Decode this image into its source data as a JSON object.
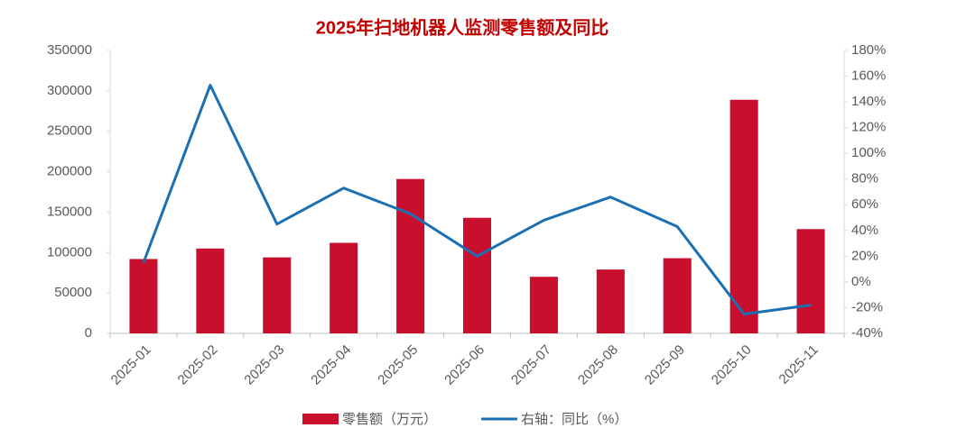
{
  "chart_data": {
    "type": "bar",
    "title": "2025年扫地机器人监测零售额及同比",
    "categories": [
      "2025-01",
      "2025-02",
      "2025-03",
      "2025-04",
      "2025-05",
      "2025-06",
      "2025-07",
      "2025-08",
      "2025-09",
      "2025-10",
      "2025-11"
    ],
    "series": [
      {
        "name": "零售额（万元）",
        "type": "bar",
        "color": "#c8102e",
        "values": [
          92000,
          105000,
          94000,
          112000,
          191000,
          143000,
          70000,
          79000,
          93000,
          289000,
          129000
        ]
      },
      {
        "name": "右轴：同比（%）",
        "type": "line",
        "axis": "y2",
        "color": "#1b6fb3",
        "values": [
          15,
          153,
          45,
          73,
          53,
          20,
          48,
          66,
          43,
          -25,
          -18
        ]
      }
    ],
    "ylim": [
      0,
      350000
    ],
    "yticks": [
      0,
      50000,
      100000,
      150000,
      200000,
      250000,
      300000,
      350000
    ],
    "y2lim": [
      -40,
      180
    ],
    "y2ticks": [
      {
        "value": -40,
        "label": "-40%"
      },
      {
        "value": -20,
        "label": "-20%"
      },
      {
        "value": 0,
        "label": "0%"
      },
      {
        "value": 20,
        "label": "20%"
      },
      {
        "value": 40,
        "label": "40%"
      },
      {
        "value": 60,
        "label": "60%"
      },
      {
        "value": 80,
        "label": "80%"
      },
      {
        "value": 100,
        "label": "100%"
      },
      {
        "value": 120,
        "label": "120%"
      },
      {
        "value": 140,
        "label": "140%"
      },
      {
        "value": 160,
        "label": "160%"
      },
      {
        "value": 180,
        "label": "180%"
      }
    ],
    "grid": false,
    "legend": "bottom"
  }
}
